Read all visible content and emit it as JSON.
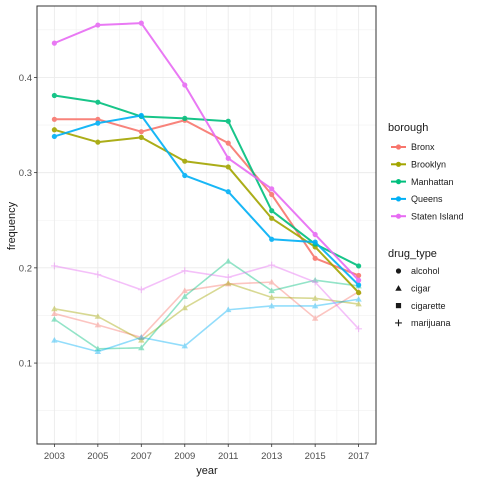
{
  "chart_data": {
    "type": "line",
    "xlabel": "year",
    "ylabel": "frequency",
    "x": [
      2003,
      2005,
      2007,
      2009,
      2011,
      2013,
      2015,
      2017
    ],
    "xticks": [
      "2003",
      "2005",
      "2007",
      "2009",
      "2011",
      "2013",
      "2015",
      "2017"
    ],
    "yticks": [
      "0.1",
      "0.2",
      "0.3",
      "0.4"
    ],
    "ylim": [
      0.015,
      0.475
    ],
    "xlim": [
      2002.2,
      2017.8
    ],
    "grid": true,
    "legend_placement": "right",
    "color_legend": {
      "title": "borough",
      "entries": [
        "Bronx",
        "Brooklyn",
        "Manhattan",
        "Queens",
        "Staten Island"
      ]
    },
    "shape_legend": {
      "title": "drug_type",
      "entries": [
        "alcohol",
        "cigar",
        "cigarette",
        "marijuana"
      ]
    },
    "colors": {
      "Bronx": "#F8766D",
      "Brooklyn": "#A3A500",
      "Manhattan": "#00BF7D",
      "Queens": "#00B0F6",
      "Staten Island": "#E76BF3"
    },
    "series": [
      {
        "borough": "Bronx",
        "drug_type": "alcohol",
        "values": [
          0.356,
          0.356,
          0.343,
          0.355,
          0.331,
          0.277,
          0.21,
          0.192
        ]
      },
      {
        "borough": "Brooklyn",
        "drug_type": "alcohol",
        "values": [
          0.345,
          0.332,
          0.337,
          0.312,
          0.306,
          0.252,
          0.222,
          0.174
        ]
      },
      {
        "borough": "Manhattan",
        "drug_type": "alcohol",
        "values": [
          0.381,
          0.374,
          0.359,
          0.357,
          0.354,
          0.26,
          0.225,
          0.202
        ]
      },
      {
        "borough": "Queens",
        "drug_type": "alcohol",
        "values": [
          0.338,
          0.352,
          0.36,
          0.297,
          0.28,
          0.23,
          0.227,
          0.182
        ]
      },
      {
        "borough": "Staten Island",
        "drug_type": "alcohol",
        "values": [
          0.436,
          0.455,
          0.457,
          0.392,
          0.315,
          0.283,
          0.235,
          0.187
        ]
      },
      {
        "borough": "Bronx",
        "drug_type": "cigar",
        "values": [
          0.152,
          0.14,
          0.127,
          0.176,
          0.183,
          0.185,
          0.147,
          0.175
        ]
      },
      {
        "borough": "Brooklyn",
        "drug_type": "cigar",
        "values": [
          0.157,
          0.149,
          0.124,
          0.158,
          0.184,
          0.169,
          0.168,
          0.162
        ]
      },
      {
        "borough": "Manhattan",
        "drug_type": "cigar",
        "values": [
          0.146,
          0.115,
          0.116,
          0.17,
          0.207,
          0.176,
          0.187,
          0.181
        ]
      },
      {
        "borough": "Queens",
        "drug_type": "cigar",
        "values": [
          0.124,
          0.112,
          0.127,
          0.118,
          0.156,
          0.16,
          0.16,
          0.167
        ]
      },
      {
        "borough": "Staten Island",
        "drug_type": "marijuana",
        "values": [
          0.202,
          0.193,
          0.177,
          0.197,
          0.19,
          0.203,
          0.185,
          0.136
        ]
      }
    ]
  }
}
